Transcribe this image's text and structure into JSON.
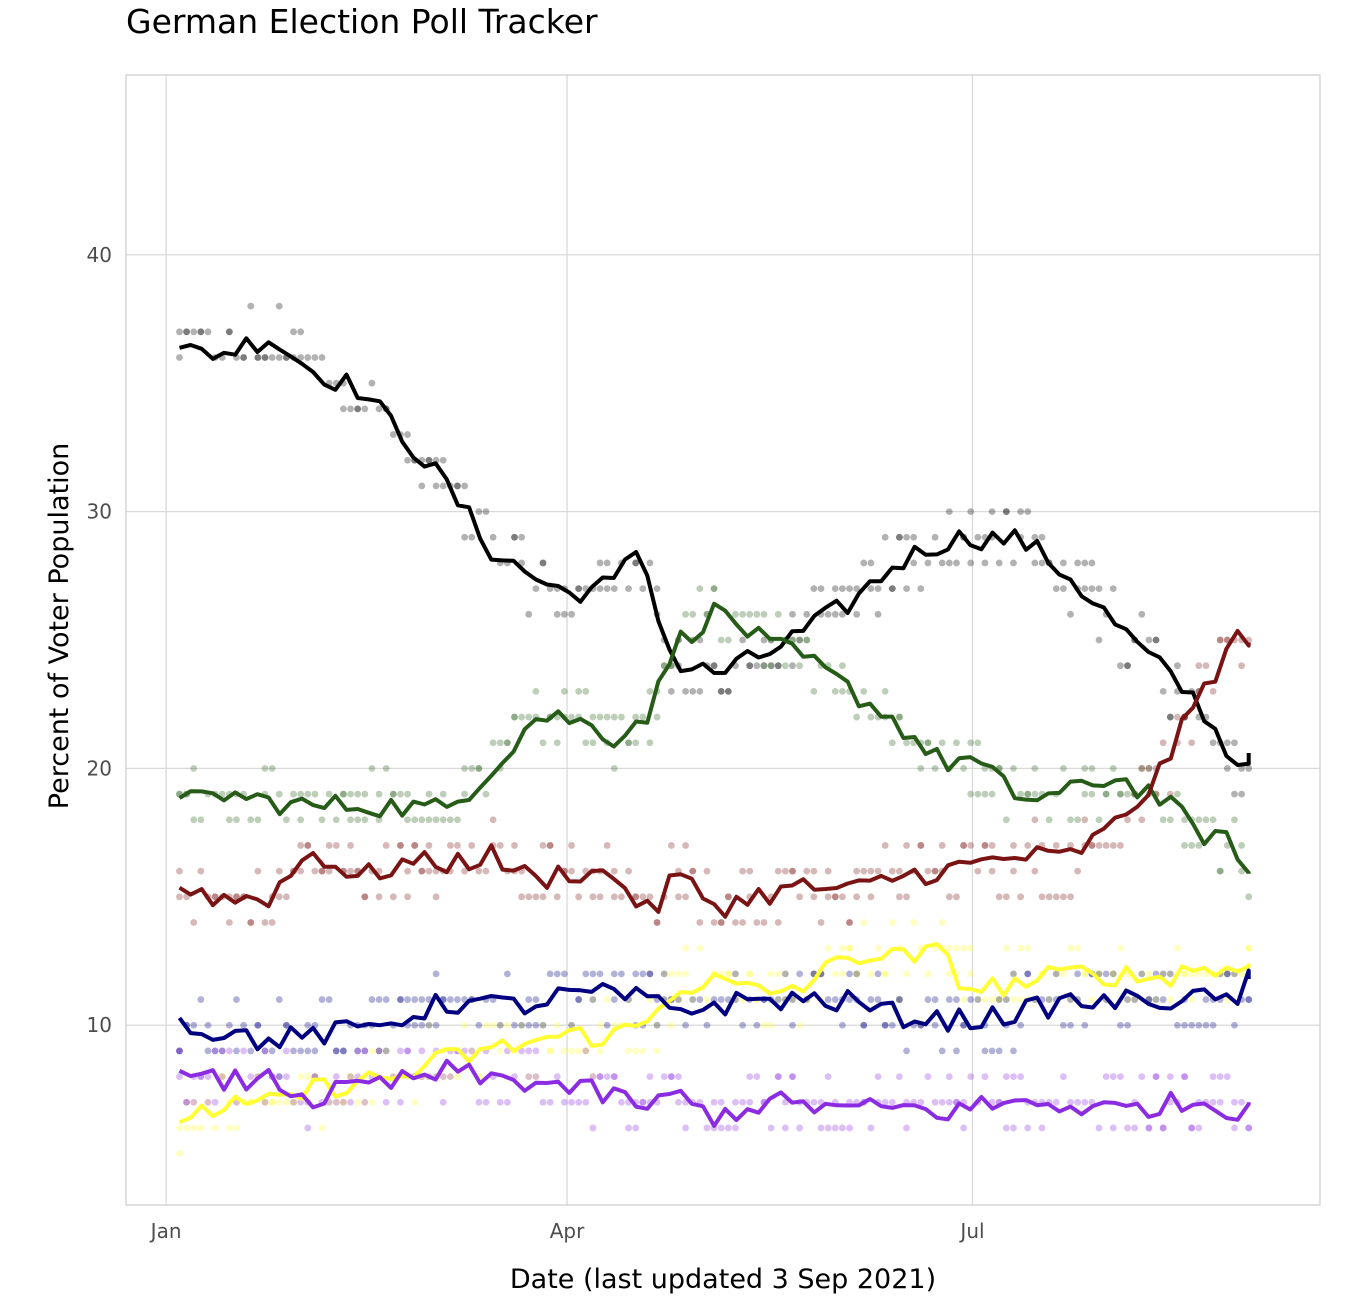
{
  "chart_data": {
    "type": "line",
    "title": "German Election Poll Tracker",
    "xlabel": "Date (last updated 3 Sep 2021)",
    "ylabel": "Percent of Voter Population",
    "x_ticks": [
      {
        "date": "2021-01-01",
        "label": "Jan"
      },
      {
        "date": "2021-04-01",
        "label": "Apr"
      },
      {
        "date": "2021-07-01",
        "label": "Jul"
      }
    ],
    "y_ticks": [
      10,
      20,
      30,
      40
    ],
    "xlim": [
      "2020-12-23",
      "2021-09-17"
    ],
    "ylim": [
      3,
      47
    ],
    "grid": true,
    "legend": "none",
    "series": [
      {
        "color": "#000000",
        "points": [
          [
            "2021-01-04",
            36.2
          ],
          [
            "2021-01-14",
            36.2
          ],
          [
            "2021-01-24",
            36.8
          ],
          [
            "2021-02-03",
            35.5
          ],
          [
            "2021-02-13",
            34.8
          ],
          [
            "2021-02-23",
            33.0
          ],
          [
            "2021-03-05",
            31.0
          ],
          [
            "2021-03-15",
            28.5
          ],
          [
            "2021-03-25",
            27.4
          ],
          [
            "2021-04-01",
            26.8
          ],
          [
            "2021-04-12",
            27.2
          ],
          [
            "2021-04-17",
            28.7
          ],
          [
            "2021-04-25",
            24.0
          ],
          [
            "2021-05-05",
            23.7
          ],
          [
            "2021-05-15",
            24.4
          ],
          [
            "2021-05-25",
            25.4
          ],
          [
            "2021-06-04",
            26.5
          ],
          [
            "2021-06-14",
            28.0
          ],
          [
            "2021-06-24",
            28.8
          ],
          [
            "2021-06-30",
            29.0
          ],
          [
            "2021-07-12",
            28.9
          ],
          [
            "2021-07-22",
            27.6
          ],
          [
            "2021-08-01",
            25.8
          ],
          [
            "2021-08-11",
            24.1
          ],
          [
            "2021-08-21",
            22.5
          ],
          [
            "2021-08-29",
            20.1
          ],
          [
            "2021-09-01",
            20.6
          ]
        ]
      },
      {
        "color": "#265c17",
        "points": [
          [
            "2021-01-04",
            18.6
          ],
          [
            "2021-01-14",
            19.0
          ],
          [
            "2021-01-24",
            18.7
          ],
          [
            "2021-02-03",
            18.5
          ],
          [
            "2021-02-13",
            18.6
          ],
          [
            "2021-02-23",
            18.5
          ],
          [
            "2021-03-05",
            18.4
          ],
          [
            "2021-03-15",
            20.0
          ],
          [
            "2021-03-25",
            22.0
          ],
          [
            "2021-04-01",
            22.0
          ],
          [
            "2021-04-12",
            21.2
          ],
          [
            "2021-04-20",
            22.3
          ],
          [
            "2021-04-25",
            24.8
          ],
          [
            "2021-05-05",
            26.2
          ],
          [
            "2021-05-15",
            24.9
          ],
          [
            "2021-05-25",
            24.2
          ],
          [
            "2021-06-04",
            23.0
          ],
          [
            "2021-06-14",
            21.8
          ],
          [
            "2021-06-24",
            20.2
          ],
          [
            "2021-06-30",
            20.4
          ],
          [
            "2021-07-12",
            18.8
          ],
          [
            "2021-07-22",
            19.0
          ],
          [
            "2021-08-01",
            19.7
          ],
          [
            "2021-08-11",
            19.0
          ],
          [
            "2021-08-21",
            17.5
          ],
          [
            "2021-08-29",
            17.0
          ],
          [
            "2021-09-01",
            15.9
          ]
        ]
      },
      {
        "color": "#7a1414",
        "points": [
          [
            "2021-01-04",
            15.4
          ],
          [
            "2021-01-14",
            14.9
          ],
          [
            "2021-01-24",
            15.0
          ],
          [
            "2021-02-03",
            16.8
          ],
          [
            "2021-02-13",
            15.7
          ],
          [
            "2021-02-23",
            16.3
          ],
          [
            "2021-03-05",
            16.3
          ],
          [
            "2021-03-15",
            16.6
          ],
          [
            "2021-03-25",
            15.6
          ],
          [
            "2021-04-01",
            16.0
          ],
          [
            "2021-04-12",
            15.8
          ],
          [
            "2021-04-20",
            14.2
          ],
          [
            "2021-04-25",
            15.9
          ],
          [
            "2021-05-05",
            14.6
          ],
          [
            "2021-05-15",
            15.1
          ],
          [
            "2021-05-25",
            15.4
          ],
          [
            "2021-06-04",
            15.2
          ],
          [
            "2021-06-14",
            15.8
          ],
          [
            "2021-06-24",
            16.0
          ],
          [
            "2021-06-30",
            16.2
          ],
          [
            "2021-07-12",
            16.6
          ],
          [
            "2021-07-22",
            16.5
          ],
          [
            "2021-08-01",
            17.6
          ],
          [
            "2021-08-11",
            19.5
          ],
          [
            "2021-08-21",
            22.8
          ],
          [
            "2021-08-29",
            25.1
          ],
          [
            "2021-09-01",
            24.9
          ]
        ]
      },
      {
        "color": "#ffff33",
        "points": [
          [
            "2021-01-04",
            6.5
          ],
          [
            "2021-01-14",
            6.8
          ],
          [
            "2021-01-24",
            6.9
          ],
          [
            "2021-02-03",
            7.5
          ],
          [
            "2021-02-13",
            7.8
          ],
          [
            "2021-02-23",
            8.0
          ],
          [
            "2021-03-05",
            8.7
          ],
          [
            "2021-03-15",
            9.0
          ],
          [
            "2021-03-25",
            9.4
          ],
          [
            "2021-04-01",
            9.6
          ],
          [
            "2021-04-12",
            9.6
          ],
          [
            "2021-04-20",
            10.2
          ],
          [
            "2021-04-25",
            11.5
          ],
          [
            "2021-05-05",
            11.7
          ],
          [
            "2021-05-15",
            11.2
          ],
          [
            "2021-05-25",
            11.6
          ],
          [
            "2021-06-04",
            12.8
          ],
          [
            "2021-06-14",
            12.6
          ],
          [
            "2021-06-24",
            12.8
          ],
          [
            "2021-06-30",
            11.4
          ],
          [
            "2021-07-12",
            11.6
          ],
          [
            "2021-07-22",
            12.0
          ],
          [
            "2021-08-01",
            12.0
          ],
          [
            "2021-08-11",
            11.8
          ],
          [
            "2021-08-21",
            12.3
          ],
          [
            "2021-08-29",
            12.0
          ],
          [
            "2021-09-01",
            12.4
          ]
        ]
      },
      {
        "color": "#000080",
        "points": [
          [
            "2021-01-04",
            10.1
          ],
          [
            "2021-01-14",
            9.7
          ],
          [
            "2021-01-24",
            9.4
          ],
          [
            "2021-02-03",
            9.6
          ],
          [
            "2021-02-13",
            9.8
          ],
          [
            "2021-02-23",
            10.3
          ],
          [
            "2021-03-05",
            10.9
          ],
          [
            "2021-03-15",
            10.8
          ],
          [
            "2021-03-25",
            10.8
          ],
          [
            "2021-04-01",
            11.2
          ],
          [
            "2021-04-12",
            11.2
          ],
          [
            "2021-04-20",
            10.9
          ],
          [
            "2021-04-25",
            10.6
          ],
          [
            "2021-05-05",
            10.8
          ],
          [
            "2021-05-15",
            11.0
          ],
          [
            "2021-05-25",
            11.0
          ],
          [
            "2021-06-04",
            10.9
          ],
          [
            "2021-06-14",
            10.4
          ],
          [
            "2021-06-24",
            10.2
          ],
          [
            "2021-06-30",
            10.2
          ],
          [
            "2021-07-12",
            10.5
          ],
          [
            "2021-07-22",
            10.9
          ],
          [
            "2021-08-01",
            10.9
          ],
          [
            "2021-08-11",
            11.0
          ],
          [
            "2021-08-21",
            11.0
          ],
          [
            "2021-08-29",
            11.0
          ],
          [
            "2021-09-01",
            11.8
          ]
        ]
      },
      {
        "color": "#8b2be2",
        "points": [
          [
            "2021-01-04",
            7.9
          ],
          [
            "2021-01-14",
            7.8
          ],
          [
            "2021-01-24",
            7.9
          ],
          [
            "2021-02-03",
            7.1
          ],
          [
            "2021-02-13",
            7.6
          ],
          [
            "2021-02-23",
            7.8
          ],
          [
            "2021-03-05",
            8.2
          ],
          [
            "2021-03-15",
            7.9
          ],
          [
            "2021-03-25",
            7.8
          ],
          [
            "2021-04-01",
            7.6
          ],
          [
            "2021-04-12",
            7.2
          ],
          [
            "2021-04-20",
            6.8
          ],
          [
            "2021-04-25",
            7.3
          ],
          [
            "2021-05-05",
            6.4
          ],
          [
            "2021-05-15",
            7.0
          ],
          [
            "2021-05-25",
            6.9
          ],
          [
            "2021-06-04",
            6.7
          ],
          [
            "2021-06-14",
            6.8
          ],
          [
            "2021-06-24",
            6.6
          ],
          [
            "2021-06-30",
            6.8
          ],
          [
            "2021-07-12",
            7.0
          ],
          [
            "2021-07-22",
            6.9
          ],
          [
            "2021-08-01",
            6.7
          ],
          [
            "2021-08-11",
            6.9
          ],
          [
            "2021-08-21",
            7.0
          ],
          [
            "2021-08-29",
            6.7
          ],
          [
            "2021-09-01",
            7.0
          ]
        ]
      }
    ],
    "scatter_opacity": 0.3,
    "scatter_spread": 1.2
  }
}
